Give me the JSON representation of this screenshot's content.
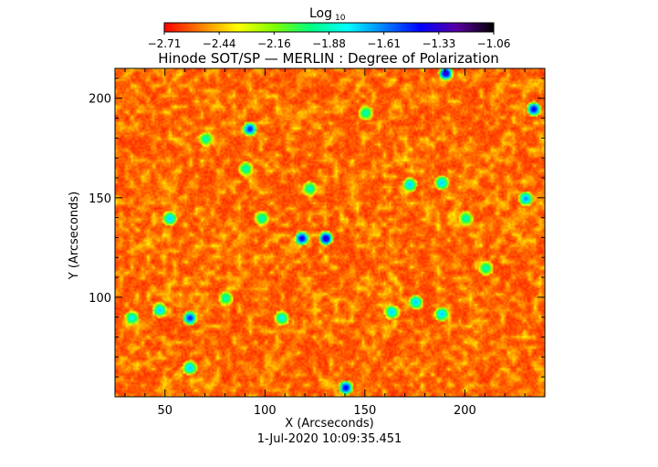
{
  "chart_data": {
    "type": "heatmap",
    "title": "Hinode SOT/SP — MERLIN : Degree of Polarization",
    "xlabel": "X (Arcseconds)",
    "ylabel": "Y (Arcseconds)",
    "date_label": "1-Jul-2020 10:09:35.451",
    "xlim": [
      25,
      240
    ],
    "ylim": [
      50,
      215
    ],
    "x_ticks": [
      50,
      100,
      150,
      200
    ],
    "y_ticks": [
      100,
      150,
      200
    ],
    "x_tick_labels": [
      "50",
      "100",
      "150",
      "200"
    ],
    "y_tick_labels": [
      "100",
      "150",
      "200"
    ],
    "colorbar": {
      "title": "Log",
      "title_sub": "10",
      "range": [
        -2.71,
        -1.06
      ],
      "tick_labels": [
        "−2.71",
        "−2.44",
        "−2.16",
        "−1.88",
        "−1.61",
        "−1.33",
        "−1.06"
      ],
      "colormap": [
        "#ff0000",
        "#ff7f00",
        "#ffff00",
        "#7fff00",
        "#00ff7f",
        "#00ffff",
        "#007fff",
        "#0000ff",
        "#5a00a0",
        "#000000"
      ]
    },
    "field": {
      "typical_value": -2.65,
      "description_level": "mostly low values with scattered high-polarization patches"
    },
    "patches": [
      {
        "x": 92,
        "y": 185,
        "level": 0.75
      },
      {
        "x": 118,
        "y": 130,
        "level": 0.8
      },
      {
        "x": 130,
        "y": 130,
        "level": 0.85
      },
      {
        "x": 140,
        "y": 55,
        "level": 0.8
      },
      {
        "x": 62,
        "y": 90,
        "level": 0.75
      },
      {
        "x": 47,
        "y": 94,
        "level": 0.6
      },
      {
        "x": 190,
        "y": 213,
        "level": 0.85
      },
      {
        "x": 234,
        "y": 195,
        "level": 0.8
      },
      {
        "x": 230,
        "y": 150,
        "level": 0.65
      },
      {
        "x": 172,
        "y": 157,
        "level": 0.6
      },
      {
        "x": 188,
        "y": 158,
        "level": 0.6
      },
      {
        "x": 62,
        "y": 65,
        "level": 0.6
      },
      {
        "x": 163,
        "y": 93,
        "level": 0.6
      },
      {
        "x": 175,
        "y": 98,
        "level": 0.6
      },
      {
        "x": 188,
        "y": 92,
        "level": 0.6
      },
      {
        "x": 108,
        "y": 90,
        "level": 0.55
      },
      {
        "x": 52,
        "y": 140,
        "level": 0.6
      },
      {
        "x": 200,
        "y": 140,
        "level": 0.5
      },
      {
        "x": 98,
        "y": 140,
        "level": 0.5
      },
      {
        "x": 90,
        "y": 165,
        "level": 0.5
      },
      {
        "x": 150,
        "y": 193,
        "level": 0.5
      },
      {
        "x": 70,
        "y": 180,
        "level": 0.5
      },
      {
        "x": 210,
        "y": 115,
        "level": 0.5
      },
      {
        "x": 33,
        "y": 90,
        "level": 0.55
      },
      {
        "x": 122,
        "y": 155,
        "level": 0.5
      },
      {
        "x": 80,
        "y": 100,
        "level": 0.5
      }
    ]
  }
}
